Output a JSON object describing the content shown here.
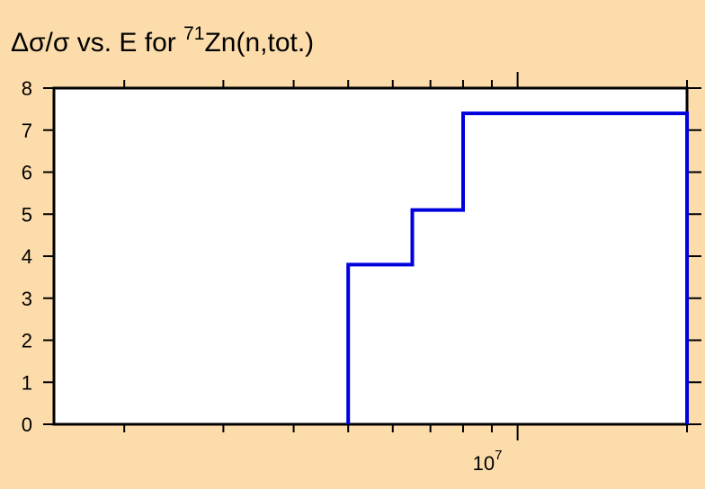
{
  "chart_data": {
    "type": "line",
    "title_parts": {
      "prefix": "Δσ/σ vs. E for ",
      "superscript": "71",
      "suffix": "Zn(n,tot.)"
    },
    "xlabel": "",
    "ylabel": "",
    "x_scale": "log",
    "x_range": [
      1500000,
      20000000
    ],
    "y_range": [
      0,
      8
    ],
    "y_ticks": [
      "0",
      "1",
      "2",
      "3",
      "4",
      "5",
      "6",
      "7",
      "8"
    ],
    "x_tick_label": {
      "base": "10",
      "exponent": "7"
    },
    "grid": false,
    "series": [
      {
        "color": "#0000dd",
        "step": true,
        "points": [
          {
            "x": 5000000,
            "y": 0
          },
          {
            "x": 5000000,
            "y": 3.8
          },
          {
            "x": 6500000,
            "y": 3.8
          },
          {
            "x": 6500000,
            "y": 5.1
          },
          {
            "x": 8000000,
            "y": 5.1
          },
          {
            "x": 8000000,
            "y": 7.4
          },
          {
            "x": 20000000,
            "y": 7.4
          },
          {
            "x": 20000000,
            "y": 0
          }
        ]
      }
    ]
  }
}
